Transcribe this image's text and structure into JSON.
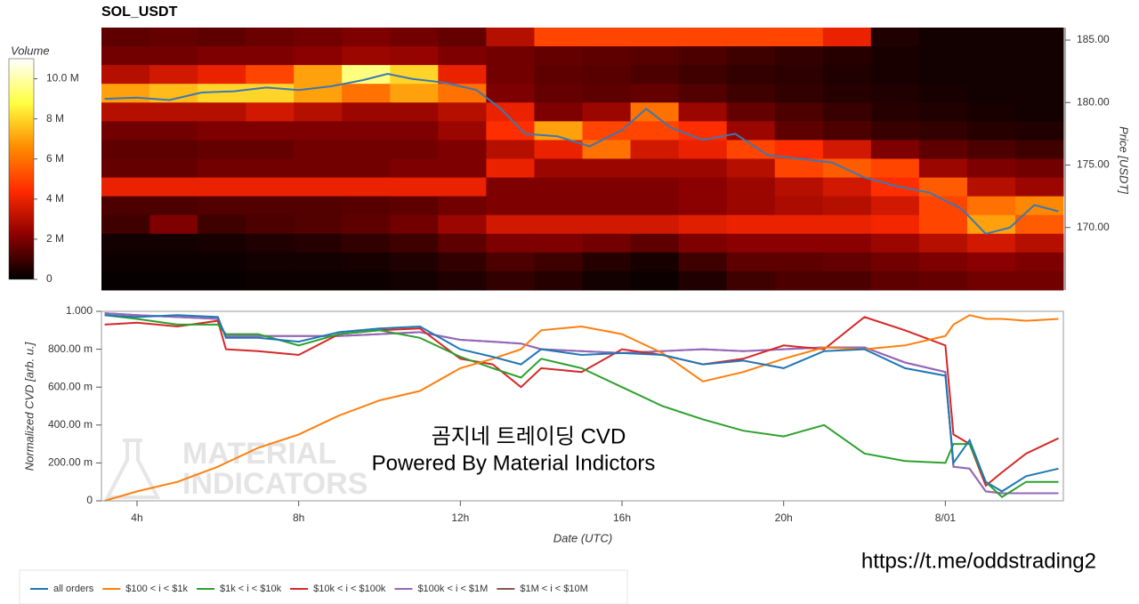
{
  "chart_data": [
    {
      "type": "heatmap",
      "title": "SOL_USDT",
      "colorbar_label": "Volume",
      "ylabel": "Price [USDT]",
      "x_edges": [
        3.12,
        4.31,
        5.5,
        6.69,
        7.88,
        9.07,
        10.26,
        11.45,
        12.64,
        13.83,
        15.02,
        16.21,
        17.4,
        18.59,
        19.78,
        20.97,
        22.16,
        23.35,
        24.54,
        25.73,
        26.92
      ],
      "y_edges": [
        186,
        184.5,
        183,
        181.5,
        180,
        178.5,
        177,
        175.5,
        174,
        172.5,
        171,
        169.5,
        168,
        166.5,
        165
      ],
      "z": [
        [
          1.5,
          1.6,
          1.5,
          1.7,
          1.8,
          2,
          1.8,
          1.6,
          3,
          5,
          5,
          5,
          5,
          5,
          5,
          4,
          0.5,
          0.3,
          0.3,
          0.3
        ],
        [
          1.8,
          1.8,
          2,
          2,
          2.2,
          2.5,
          2.4,
          2,
          1.8,
          1.6,
          1.5,
          1.4,
          1.2,
          1.0,
          0.8,
          0.6,
          0.4,
          0.3,
          0.3,
          0.3
        ],
        [
          3,
          3.5,
          4,
          5,
          7,
          9.5,
          8,
          4,
          1.8,
          1.5,
          1.4,
          1.2,
          1,
          0.8,
          0.7,
          0.5,
          0.4,
          0.3,
          0.3,
          0.3
        ],
        [
          7,
          7.5,
          8,
          8,
          7,
          6,
          7,
          6,
          2,
          1.6,
          1.5,
          1.6,
          1.3,
          1,
          0.8,
          0.6,
          0.5,
          0.4,
          0.3,
          0.3
        ],
        [
          3,
          3,
          3,
          3.5,
          3,
          2.5,
          2.5,
          3,
          4,
          2,
          2.5,
          6,
          2.5,
          1.6,
          1.2,
          0.9,
          0.6,
          0.5,
          0.4,
          0.3
        ],
        [
          1.8,
          1.8,
          2,
          2,
          2,
          2,
          2,
          2.5,
          4.5,
          7,
          5,
          5,
          4.5,
          2.5,
          1.5,
          1.2,
          0.9,
          0.8,
          0.6,
          0.5
        ],
        [
          1.5,
          1.5,
          1.6,
          1.6,
          1.8,
          1.8,
          1.8,
          2,
          3,
          4,
          6,
          3.5,
          4,
          5,
          4.5,
          3.5,
          2,
          1.5,
          1.2,
          1
        ],
        [
          1.6,
          1.6,
          1.8,
          1.8,
          1.8,
          1.8,
          2,
          2,
          4,
          2.5,
          2.5,
          2.5,
          2.5,
          3,
          5,
          5.5,
          5,
          2.5,
          2,
          1.8
        ],
        [
          4,
          4,
          4,
          4,
          4,
          4,
          4,
          4,
          2,
          2,
          2,
          2,
          2.2,
          2.5,
          3,
          3.5,
          4.5,
          5.5,
          3,
          2.5
        ],
        [
          1.2,
          1.2,
          1.3,
          1.3,
          1.3,
          1.4,
          1.5,
          1.8,
          2,
          2,
          2,
          2,
          2.2,
          2.5,
          2.8,
          3,
          3.5,
          5,
          6,
          6.5
        ],
        [
          1,
          2,
          1,
          1.2,
          1.3,
          1.5,
          1.8,
          2.5,
          3.5,
          3.5,
          3.5,
          3.5,
          3.8,
          4,
          4,
          4,
          4.2,
          5,
          7,
          5.5
        ],
        [
          0.3,
          0.3,
          0.4,
          0.5,
          0.6,
          0.8,
          1,
          1.5,
          2,
          2,
          1.8,
          1.5,
          2,
          2.2,
          2.2,
          2.2,
          2.5,
          3,
          3.5,
          3
        ],
        [
          0.2,
          0.2,
          0.2,
          0.3,
          0.3,
          0.4,
          0.5,
          0.8,
          1.2,
          1,
          0.6,
          0.4,
          1,
          1.5,
          1.5,
          1.6,
          1.8,
          2,
          2.2,
          2
        ],
        [
          0.1,
          0.1,
          0.1,
          0.2,
          0.2,
          0.2,
          0.3,
          0.5,
          0.8,
          0.6,
          0.3,
          0.2,
          0.5,
          1,
          1.2,
          1.2,
          1.5,
          1.6,
          1.8,
          1.8
        ]
      ],
      "zlim": [
        0,
        11
      ],
      "zticks": [
        0,
        {
          "value": 2,
          "label": "2 M"
        },
        {
          "value": 4,
          "label": "4 M"
        },
        {
          "value": 6,
          "label": "6 M"
        },
        {
          "value": 8,
          "label": "8 M"
        },
        {
          "value": 10,
          "label": "10.0 M"
        }
      ],
      "colorscale": [
        "#000000",
        "#8b0000",
        "#ff2a00",
        "#ff8c00",
        "#ffff40",
        "#ffffff"
      ],
      "xlim": [
        3.12,
        26.92
      ],
      "ylim": [
        165,
        186
      ],
      "yticks": [
        {
          "value": 170,
          "label": "170.00"
        },
        {
          "value": 175,
          "label": "175.00"
        },
        {
          "value": 180,
          "label": "180.00"
        },
        {
          "value": 185,
          "label": "185.00"
        }
      ],
      "series": [
        {
          "color": "#3b78b3",
          "x": [
            3.2,
            4,
            4.8,
            5.6,
            6.4,
            7.2,
            8,
            8.8,
            9.6,
            10.2,
            10.8,
            11.6,
            12.4,
            13,
            13.6,
            14.4,
            15.2,
            16,
            16.6,
            17.2,
            18,
            18.8,
            19.6,
            20.4,
            21.2,
            22,
            22.8,
            23.6,
            24.4,
            25,
            25.6,
            26.2,
            26.8
          ],
          "values": [
            180.3,
            180.4,
            180.2,
            180.8,
            180.9,
            181.2,
            181.0,
            181.3,
            181.8,
            182.3,
            181.9,
            181.6,
            181.0,
            179.5,
            177.5,
            177.3,
            176.5,
            177.8,
            179.5,
            178.0,
            177.0,
            177.5,
            175.8,
            175.5,
            175.2,
            174.0,
            173.3,
            172.8,
            171.5,
            169.5,
            170.0,
            171.8,
            171.3
          ]
        }
      ]
    },
    {
      "type": "line",
      "xlabel": "Date (UTC)",
      "ylabel": "Normalized CVD [arb. u.]",
      "annotations": [
        "곰지네 트레이딩 CVD",
        "Powered By Material Indictors"
      ],
      "watermark": [
        "MATERIAL",
        "INDICATORS"
      ],
      "xlim": [
        3.12,
        26.92
      ],
      "ylim": [
        0,
        1
      ],
      "xticks": [
        {
          "value": 4,
          "label": "4h"
        },
        {
          "value": 8,
          "label": "8h"
        },
        {
          "value": 12,
          "label": "12h"
        },
        {
          "value": 16,
          "label": "16h"
        },
        {
          "value": 20,
          "label": "20h"
        },
        {
          "value": 24,
          "label": "8/01"
        }
      ],
      "yticks": [
        0,
        {
          "value": 0.2,
          "label": "200.00 m"
        },
        {
          "value": 0.4,
          "label": "400.00 m"
        },
        {
          "value": 0.6,
          "label": "600.00 m"
        },
        {
          "value": 0.8,
          "label": "800.00 m"
        },
        {
          "value": 1,
          "label": "1.000"
        }
      ],
      "legend": "bottom",
      "x": [
        3.2,
        4,
        5,
        6,
        6.2,
        7,
        8,
        9,
        10,
        11,
        12,
        12.8,
        13.5,
        14,
        15,
        16,
        17,
        18,
        19,
        20,
        21,
        22,
        23,
        24,
        24.2,
        24.6,
        25,
        25.4,
        26,
        26.8
      ],
      "series": [
        {
          "name": "all orders",
          "color": "#1f77b4",
          "values": [
            0.98,
            0.97,
            0.98,
            0.97,
            0.86,
            0.86,
            0.84,
            0.89,
            0.91,
            0.92,
            0.8,
            0.76,
            0.72,
            0.8,
            0.77,
            0.78,
            0.77,
            0.72,
            0.74,
            0.7,
            0.79,
            0.8,
            0.7,
            0.66,
            0.2,
            0.32,
            0.1,
            0.05,
            0.13,
            0.17
          ]
        },
        {
          "name": "$100 < i < $1k",
          "color": "#ff7f0e",
          "values": [
            0.0,
            0.05,
            0.1,
            0.18,
            0.2,
            0.28,
            0.35,
            0.45,
            0.53,
            0.58,
            0.7,
            0.75,
            0.8,
            0.9,
            0.92,
            0.88,
            0.78,
            0.63,
            0.68,
            0.75,
            0.81,
            0.8,
            0.82,
            0.87,
            0.93,
            0.98,
            0.96,
            0.96,
            0.95,
            0.96
          ]
        },
        {
          "name": "$1k < i < $10k",
          "color": "#2ca02c",
          "values": [
            0.98,
            0.96,
            0.93,
            0.93,
            0.88,
            0.88,
            0.82,
            0.88,
            0.9,
            0.86,
            0.76,
            0.7,
            0.65,
            0.75,
            0.7,
            0.6,
            0.5,
            0.43,
            0.37,
            0.34,
            0.4,
            0.25,
            0.21,
            0.2,
            0.3,
            0.3,
            0.1,
            0.02,
            0.1,
            0.1
          ]
        },
        {
          "name": "$10k < i < $100k",
          "color": "#d62728",
          "values": [
            0.93,
            0.94,
            0.92,
            0.95,
            0.8,
            0.79,
            0.77,
            0.88,
            0.9,
            0.91,
            0.75,
            0.72,
            0.6,
            0.7,
            0.68,
            0.8,
            0.77,
            0.72,
            0.75,
            0.82,
            0.8,
            0.97,
            0.9,
            0.82,
            0.35,
            0.3,
            0.08,
            0.15,
            0.25,
            0.33
          ]
        },
        {
          "name": "$100k < i < $1M",
          "color": "#9467bd",
          "values": [
            0.99,
            0.98,
            0.97,
            0.96,
            0.87,
            0.87,
            0.87,
            0.87,
            0.88,
            0.89,
            0.85,
            0.84,
            0.83,
            0.8,
            0.79,
            0.78,
            0.79,
            0.8,
            0.79,
            0.8,
            0.81,
            0.81,
            0.73,
            0.68,
            0.18,
            0.17,
            0.05,
            0.04,
            0.04,
            0.04
          ]
        },
        {
          "name": "$1M < i < $10M",
          "color": "#8c564b",
          "values": [
            0.99,
            0.98,
            0.97,
            0.96,
            0.87,
            0.87,
            0.87,
            0.87,
            0.88,
            0.89,
            0.85,
            0.84,
            0.83,
            0.8,
            0.79,
            0.78,
            0.79,
            0.8,
            0.79,
            0.8,
            0.81,
            0.81,
            0.73,
            0.68,
            0.18,
            0.17,
            0.05,
            0.04,
            0.04,
            0.04
          ]
        }
      ]
    }
  ],
  "footer_url": "https://t.me/oddstrading2"
}
